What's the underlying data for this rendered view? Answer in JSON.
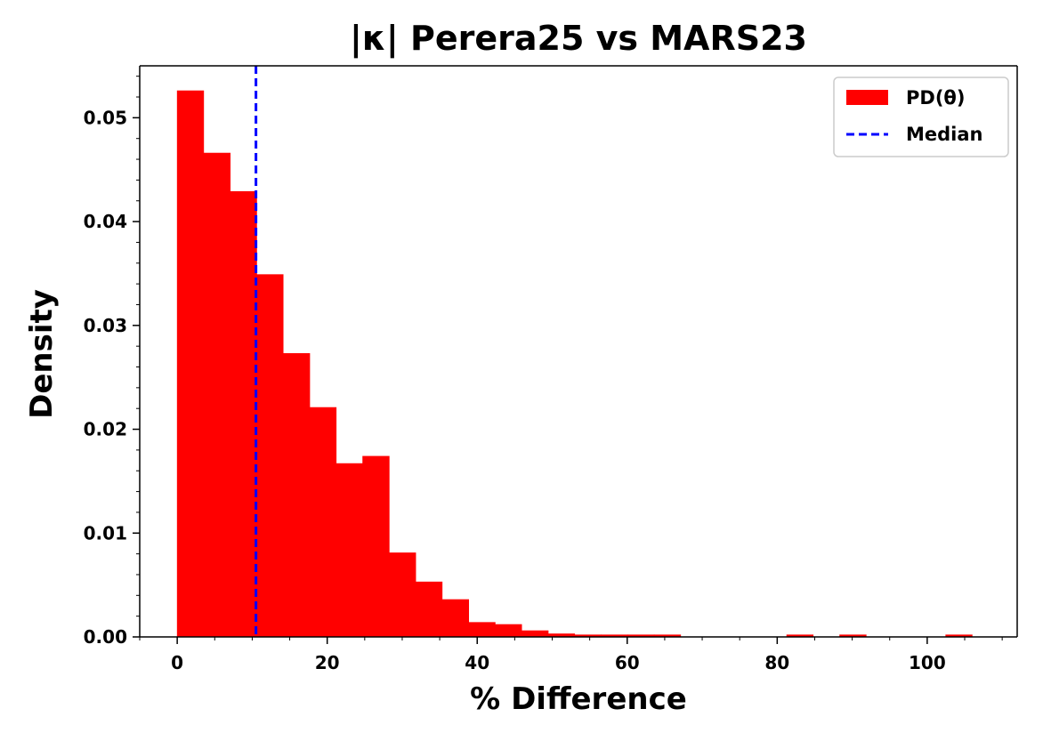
{
  "chart_data": {
    "type": "bar",
    "title": "|κ| Perera25 vs MARS23",
    "xlabel": "% Difference",
    "ylabel": "Density",
    "xlim": [
      -5,
      112
    ],
    "ylim": [
      0,
      0.055
    ],
    "xticks": [
      0,
      20,
      40,
      60,
      80,
      100
    ],
    "xtick_labels": [
      "0",
      "20",
      "40",
      "60",
      "80",
      "100"
    ],
    "yticks": [
      0.0,
      0.01,
      0.02,
      0.03,
      0.04,
      0.05
    ],
    "ytick_labels": [
      "0.00",
      "0.01",
      "0.02",
      "0.03",
      "0.04",
      "0.05"
    ],
    "grid": false,
    "legend_position": "top-right",
    "bin_edges": [
      0,
      3.53,
      7.07,
      10.6,
      14.13,
      17.67,
      21.2,
      24.73,
      28.27,
      31.8,
      35.33,
      38.87,
      42.4,
      45.93,
      49.47,
      53.0,
      56.53,
      60.07,
      63.6,
      67.13,
      70.67,
      74.2,
      77.73,
      81.27,
      84.8,
      88.33,
      91.87,
      95.4,
      98.93,
      102.47,
      106.0
    ],
    "series": [
      {
        "name": "PD(θ)",
        "color": "#ff0000",
        "values": [
          0.0526,
          0.0466,
          0.0429,
          0.0349,
          0.0273,
          0.0221,
          0.0167,
          0.0174,
          0.0081,
          0.0053,
          0.0036,
          0.0014,
          0.0012,
          0.0006,
          0.0003,
          0.0002,
          0.0002,
          0.0002,
          0.0002,
          0.0,
          0.0,
          0.0,
          0.0,
          0.0002,
          0.0,
          0.0002,
          0.0,
          0.0,
          0.0,
          0.0002
        ]
      }
    ],
    "median": {
      "name": "Median",
      "value": 10.5,
      "color": "#0000ff",
      "style": "dashed"
    }
  }
}
